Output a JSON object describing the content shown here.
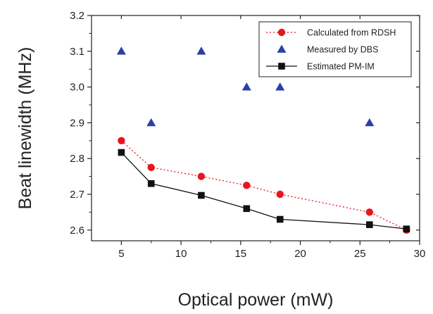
{
  "chart_data": {
    "type": "scatter",
    "title": "",
    "xlabel": "Optical power (mW)",
    "ylabel": "Beat linewidth (MHz)",
    "xlim": [
      2.5,
      30
    ],
    "ylim": [
      2.57,
      3.2
    ],
    "xticks": [
      5,
      10,
      15,
      20,
      25,
      30
    ],
    "yticks": [
      2.6,
      2.7,
      2.8,
      2.9,
      3.0,
      3.1,
      3.2
    ],
    "xtick_labels": [
      "5",
      "10",
      "15",
      "20",
      "25",
      "30"
    ],
    "ytick_labels": [
      "2.6",
      "2.7",
      "2.8",
      "2.9",
      "3.0",
      "3.1",
      "3.2"
    ],
    "grid": false,
    "legend_position": "top-right",
    "series": [
      {
        "name": "Calculated from RDSH",
        "style": "dotted-line-circle",
        "color": "#e8141e",
        "x": [
          5,
          7.5,
          11.7,
          15.5,
          18.3,
          25.8,
          28.9
        ],
        "y": [
          2.85,
          2.775,
          2.75,
          2.725,
          2.7,
          2.65,
          2.6
        ]
      },
      {
        "name": "Measured by DBS",
        "style": "triangle",
        "color": "#2b3fa6",
        "x": [
          5,
          7.5,
          11.7,
          15.5,
          18.3,
          25.8
        ],
        "y": [
          3.1,
          2.9,
          3.1,
          3.0,
          3.0,
          2.9
        ]
      },
      {
        "name": "Estimated PM-IM",
        "style": "solid-line-square",
        "color": "#111111",
        "x": [
          5,
          7.5,
          11.7,
          15.5,
          18.3,
          25.8,
          28.9
        ],
        "y": [
          2.817,
          2.73,
          2.697,
          2.66,
          2.63,
          2.615,
          2.603
        ]
      }
    ]
  }
}
